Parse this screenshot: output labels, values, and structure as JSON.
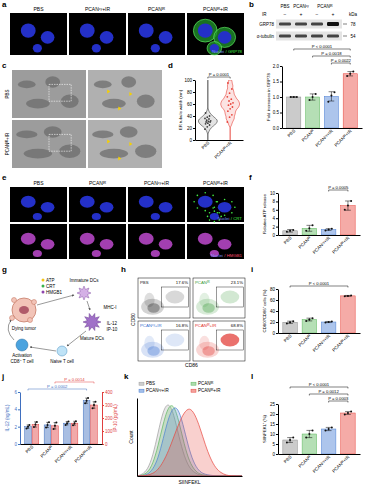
{
  "figure": {
    "panel_labels": [
      "a",
      "b",
      "c",
      "d",
      "e",
      "f",
      "g",
      "h",
      "i",
      "j",
      "k",
      "l"
    ],
    "a": {
      "columns": [
        "PBS",
        "PCANᶜʸ+IR",
        "PCANᴵᴿ",
        "PCANᴵᴿ+IR"
      ],
      "stain": [
        "Nuclei",
        "/ GRP78"
      ]
    },
    "b": {
      "groups": [
        "PBS",
        "PCANᶜʸ",
        "PCANᴵᴿ"
      ],
      "ir_label": "IR",
      "ir": [
        "−",
        "+",
        "−",
        "+"
      ],
      "kda_label": "kDa",
      "rows": [
        "GRP78",
        "α-tubulin"
      ],
      "kda": [
        78,
        54
      ]
    },
    "c": {
      "rows": [
        "PBS",
        "PCANᴵᴿ+IR"
      ]
    },
    "e": {
      "columns": [
        "PBS",
        "PCANᴵᴿ",
        "PCANᶜʸ+IR",
        "PCANᴵᴿ+IR"
      ],
      "stains": [
        [
          "Nuclei",
          "/ CRT"
        ],
        [
          "Nuclei",
          "/ HMGB1"
        ]
      ]
    },
    "g": {
      "signals": [
        "ATP",
        "CRT",
        "HMGB1"
      ],
      "immature": "Immature DCs",
      "mhc": "MHC-I",
      "mature": "Mature DCs",
      "cytokines": [
        "IL-12",
        "IP-10"
      ],
      "tumor": "Dying tumor",
      "activated": [
        "Activation",
        "CD8⁺ T cell"
      ],
      "naive": "Naive T cell"
    }
  },
  "chart_data": [
    {
      "type": "bar",
      "y_label": "Fold increases in GRP78",
      "categories": [
        "PBS",
        "PCANᴵᴿ",
        "PCANᶜʸ+IR",
        "PCANᴵᴿ+IR"
      ],
      "values": [
        1.0,
        1.0,
        1.02,
        1.75
      ],
      "errors": [
        0,
        0.1,
        0.15,
        0.07
      ],
      "points": [
        [
          1,
          1,
          1
        ],
        [
          0.9,
          1.0,
          1.1
        ],
        [
          0.85,
          1.05,
          1.15
        ],
        [
          1.68,
          1.75,
          1.82
        ]
      ],
      "colors": [
        "#8c8c8c",
        "#5cb85c",
        "#4a7fd4",
        "#e8453c"
      ],
      "ylim": [
        0,
        2
      ],
      "yticks": [
        {
          "value": 0,
          "label": "0.0"
        },
        0.5,
        {
          "value": 1,
          "label": "1.0"
        },
        1.5,
        {
          "value": 2,
          "label": "2.0"
        }
      ],
      "comparisons": [
        {
          "text": "P = 0.0022",
          "groups": [
            "PCANᶜʸ+IR",
            "PCANᴵᴿ+IR"
          ]
        },
        {
          "text": "P = 0.0018",
          "groups": [
            "PCANᴵᴿ",
            "PCANᴵᴿ+IR"
          ]
        },
        {
          "text": "P < 0.0001",
          "groups": [
            "PBS",
            "PCANᴵᴿ+IR"
          ]
        }
      ]
    },
    {
      "type": "violin",
      "y_label": "ER tubule width (nm)",
      "categories": [
        "PBS",
        "PCANᴵᴿ+IR"
      ],
      "points": [
        [
          18,
          22,
          25,
          27,
          28,
          30,
          30,
          31,
          32,
          33,
          35,
          36,
          38,
          40,
          45
        ],
        [
          30,
          38,
          42,
          48,
          52,
          55,
          58,
          60,
          62,
          65,
          68,
          72,
          78,
          85,
          95
        ]
      ],
      "colors": [
        "#404040",
        "#e8453c"
      ],
      "ylim": [
        0,
        100
      ],
      "yticks": [
        0,
        20,
        40,
        60,
        80,
        100
      ],
      "comparisons": [
        {
          "text": "P = 0.0001",
          "groups": [
            "PBS",
            "PCANᴵᴿ+IR"
          ]
        }
      ]
    },
    {
      "type": "bar",
      "y_label": "Relative ATP release",
      "categories": [
        "PBS",
        "PCANᴵᴿ",
        "PCANᶜʸ+IR",
        "PCANᴵᴿ+IR"
      ],
      "values": [
        1.0,
        1.6,
        1.3,
        7.0
      ],
      "errors": [
        0.3,
        0.7,
        0.2,
        1.1
      ],
      "points": [
        [
          0.8,
          1.0,
          1.2
        ],
        [
          1.0,
          1.6,
          2.3
        ],
        [
          1.1,
          1.3,
          1.5
        ],
        [
          6.0,
          7.0,
          8.1
        ]
      ],
      "colors": [
        "#8c8c8c",
        "#5cb85c",
        "#4a7fd4",
        "#e8453c"
      ],
      "ylim": [
        0,
        10
      ],
      "yticks": [
        0,
        2,
        4,
        6,
        8,
        10
      ],
      "comparisons": [
        {
          "text": "P = 0.0005",
          "groups": [
            "PCANᶜʸ+IR",
            "PCANᴵᴿ+IR"
          ]
        }
      ]
    },
    {
      "type": "bar",
      "y_label": "CD80⁺/CD86⁺ cells (%)",
      "categories": [
        "PBS",
        "PCANᴵᴿ",
        "PCANᶜʸ+IR",
        "PCANᴵᴿ+IR"
      ],
      "values": [
        19.5,
        24.5,
        20.0,
        67.5
      ],
      "errors": [
        2,
        2.5,
        1,
        0.8
      ],
      "points": [
        [
          17.5,
          19.5,
          21.5
        ],
        [
          22,
          24.5,
          27
        ],
        [
          19,
          20,
          21
        ],
        [
          66.8,
          67.5,
          68.2
        ]
      ],
      "colors": [
        "#8c8c8c",
        "#5cb85c",
        "#4a7fd4",
        "#e8453c"
      ],
      "ylim": [
        0,
        80
      ],
      "yticks": [
        0,
        20,
        40,
        60,
        80
      ],
      "comparisons": [
        {
          "text": "P < 0.0001",
          "groups": [
            "PBS",
            "PCANᴵᴿ+IR"
          ]
        }
      ]
    },
    {
      "type": "bar",
      "y_label": "IL-12 (ng/mL)",
      "y2_label": "IP-10 (pg/mL)",
      "categories": [
        "PBS",
        "PCANᴵᴿ",
        "PCANᶜʸ+IR",
        "PCANᴵᴿ+IR"
      ],
      "ylim": [
        0,
        6
      ],
      "yticks": [
        0,
        2,
        4,
        6
      ],
      "y2lim": [
        0,
        400
      ],
      "y2ticks": [
        0,
        100,
        200,
        300,
        400
      ],
      "series": [
        {
          "color": "#3f6fbf",
          "values": [
            2.0,
            2.2,
            2.4,
            5.0
          ],
          "errors": [
            0.2,
            0.3,
            0.2,
            0.3
          ],
          "points": [
            [
              1.8,
              2.0,
              2.2
            ],
            [
              1.9,
              2.2,
              2.5
            ],
            [
              2.2,
              2.4,
              2.6
            ],
            [
              4.7,
              5.0,
              5.3
            ]
          ],
          "comparisons": [
            {
              "text": "P = 0.0002",
              "groups": [
                "PBS",
                "PCANᴵᴿ+IR"
              ]
            }
          ]
        },
        {
          "color": "#e04040",
          "axis": "y2",
          "values": [
            150,
            140,
            160,
            300
          ],
          "errors": [
            20,
            25,
            15,
            25
          ],
          "points": [
            [
              130,
              150,
              170
            ],
            [
              115,
              140,
              165
            ],
            [
              145,
              160,
              175
            ],
            [
              275,
              300,
              325
            ]
          ],
          "comparisons": [
            {
              "text": "P = 0.0014",
              "groups": [
                "PCANᴵᴿ",
                "PCANᴵᴿ+IR"
              ]
            }
          ]
        }
      ]
    },
    {
      "type": "area",
      "x_label": "SIINFEKL",
      "y_label": "Count",
      "tick_labels": false,
      "legend": "top",
      "x": [
        0,
        1,
        2,
        3,
        4,
        5,
        6,
        7,
        8,
        9,
        10,
        11,
        12,
        13,
        14,
        15,
        16,
        17,
        18,
        19,
        20
      ],
      "xlim": [
        0,
        20
      ],
      "ylim": [
        0,
        100
      ],
      "series": [
        {
          "name": "PBS",
          "color": "#9e9e9e",
          "values": [
            0,
            2,
            8,
            25,
            55,
            85,
            95,
            80,
            50,
            25,
            10,
            4,
            1,
            0,
            0,
            0,
            0,
            0,
            0,
            0,
            0
          ]
        },
        {
          "name": "PCANᴵᴿ",
          "color": "#5cb85c",
          "values": [
            0,
            1,
            4,
            15,
            38,
            68,
            90,
            92,
            70,
            40,
            18,
            7,
            2,
            1,
            0,
            0,
            0,
            0,
            0,
            0,
            0
          ]
        },
        {
          "name": "PCANᶜʸ+IR",
          "color": "#4a7fd4",
          "values": [
            0,
            0,
            2,
            8,
            22,
            48,
            75,
            90,
            85,
            60,
            32,
            14,
            5,
            2,
            1,
            0,
            0,
            0,
            0,
            0,
            0
          ]
        },
        {
          "name": "PCANᴵᴿ+IR",
          "color": "#e8453c",
          "values": [
            0,
            0,
            1,
            3,
            8,
            18,
            32,
            50,
            68,
            82,
            88,
            80,
            62,
            40,
            22,
            10,
            4,
            1,
            0,
            0,
            0
          ]
        }
      ]
    },
    {
      "type": "bar",
      "y_label": "SIINFEKL⁺ (%)",
      "categories": [
        "PBS",
        "PCANᴵᴿ",
        "PCANᶜʸ+IR",
        "PCANᴵᴿ+IR"
      ],
      "values": [
        7.0,
        10.0,
        12.5,
        20.5
      ],
      "errors": [
        1.2,
        1.8,
        0.8,
        0.7
      ],
      "points": [
        [
          5.8,
          7,
          8.2
        ],
        [
          8.3,
          10,
          11.8
        ],
        [
          11.7,
          12.5,
          13.3
        ],
        [
          19.8,
          20.5,
          21.2
        ]
      ],
      "colors": [
        "#8c8c8c",
        "#5cb85c",
        "#4a7fd4",
        "#e8453c"
      ],
      "ylim": [
        0,
        25
      ],
      "yticks": [
        0,
        5,
        10,
        15,
        20,
        25
      ],
      "comparisons": [
        {
          "text": "P = 0.0003",
          "groups": [
            "PCANᶜʸ+IR",
            "PCANᴵᴿ+IR"
          ]
        },
        {
          "text": "P = 0.0012",
          "groups": [
            "PCANᴵᴿ",
            "PCANᴵᴿ+IR"
          ]
        },
        {
          "text": "P < 0.0001",
          "groups": [
            "PBS",
            "PCANᴵᴿ+IR"
          ]
        }
      ]
    },
    {
      "type": "flow",
      "x_label": "CD86",
      "y_label": "CD80",
      "tick_labels": false,
      "categories": [
        "PBS",
        "PCANᴵᴿ",
        "PCANᶜʸ+IR",
        "PCANᴵᴿ+IR"
      ],
      "values": [
        17.6,
        23.1,
        16.8,
        68.8
      ],
      "value_labels": [
        "17.6%",
        "23.1%",
        "16.8%",
        "68.8%"
      ],
      "colors": [
        "#222222",
        "#3c9b3c",
        "#3a6fd0",
        "#e0302a"
      ]
    }
  ]
}
